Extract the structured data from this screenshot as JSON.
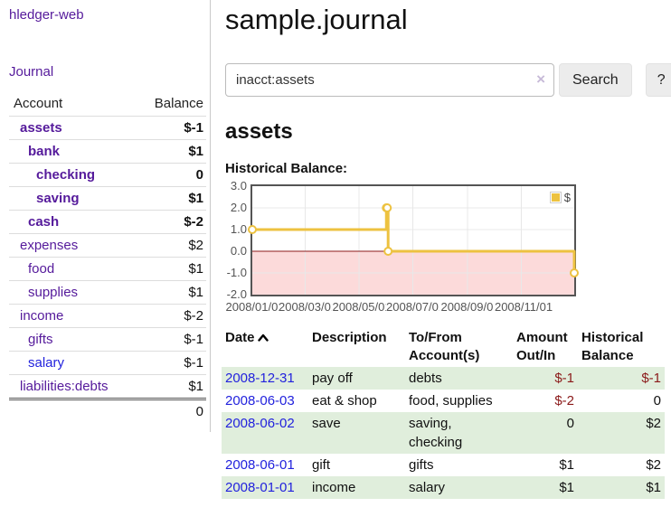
{
  "colors": {
    "link_purple": "#551a9b",
    "link_blue": "#2222dd",
    "negative_strong": "#8b1a1a",
    "negative_soft": "#b25f5f",
    "series_yellow": "#edc240",
    "negative_region_pink": "#fcdada",
    "row_green": "#e0eedc"
  },
  "sidebar": {
    "brand": "hledger-web",
    "journal_link": "Journal",
    "accounts_table": {
      "headers": {
        "account": "Account",
        "balance": "Balance"
      },
      "rows": [
        {
          "name": "assets",
          "balance": "$-1",
          "level": 1,
          "bold": true,
          "negative": true,
          "blue": false
        },
        {
          "name": "bank",
          "balance": "$1",
          "level": 2,
          "bold": true,
          "negative": false,
          "blue": false
        },
        {
          "name": "checking",
          "balance": "0",
          "level": 3,
          "bold": true,
          "negative": false,
          "blue": false
        },
        {
          "name": "saving",
          "balance": "$1",
          "level": 3,
          "bold": true,
          "negative": false,
          "blue": false
        },
        {
          "name": "cash",
          "balance": "$-2",
          "level": 2,
          "bold": true,
          "negative": true,
          "blue": false
        },
        {
          "name": "expenses",
          "balance": "$2",
          "level": 1,
          "bold": false,
          "negative": false,
          "blue": false
        },
        {
          "name": "food",
          "balance": "$1",
          "level": 2,
          "bold": false,
          "negative": false,
          "blue": false
        },
        {
          "name": "supplies",
          "balance": "$1",
          "level": 2,
          "bold": false,
          "negative": false,
          "blue": false
        },
        {
          "name": "income",
          "balance": "$-2",
          "level": 1,
          "bold": false,
          "negative": true,
          "blue": false
        },
        {
          "name": "gifts",
          "balance": "$-1",
          "level": 2,
          "bold": false,
          "negative": true,
          "blue": false
        },
        {
          "name": "salary",
          "balance": "$-1",
          "level": 2,
          "bold": false,
          "negative": true,
          "blue": true
        },
        {
          "name": "liabilities:debts",
          "balance": "$1",
          "level": 1,
          "bold": false,
          "negative": false,
          "blue": false
        }
      ],
      "total": "0"
    }
  },
  "main": {
    "title": "sample.journal",
    "search": {
      "value": "inacct:assets",
      "clear_icon": "×",
      "button": "Search",
      "help_button": "?"
    },
    "account_heading": "assets",
    "chart_heading": "Historical Balance:"
  },
  "chart_data": {
    "type": "line",
    "title": "Historical Balance:",
    "style": "steps",
    "legend_position": "top-right",
    "ylim": [
      -2,
      3
    ],
    "x_range_days": 365,
    "negative_region_shaded": true,
    "series": [
      {
        "name": "$",
        "color": "#edc240",
        "points": [
          {
            "date": "2008-01-01",
            "day": 0,
            "value": 1
          },
          {
            "date": "2008-06-01",
            "day": 152,
            "value": 2
          },
          {
            "date": "2008-06-02",
            "day": 153,
            "value": 2
          },
          {
            "date": "2008-06-03",
            "day": 154,
            "value": 0
          },
          {
            "date": "2008-12-31",
            "day": 365,
            "value": -1
          }
        ]
      }
    ],
    "x_ticks": [
      {
        "label": "2008/01/01",
        "day": 0
      },
      {
        "label": "2008/03/01",
        "day": 60
      },
      {
        "label": "2008/05/01",
        "day": 121
      },
      {
        "label": "2008/07/01",
        "day": 182
      },
      {
        "label": "2008/09/01",
        "day": 244
      },
      {
        "label": "2008/11/01",
        "day": 305
      }
    ],
    "y_ticks": [
      {
        "label": "3.0",
        "value": 3
      },
      {
        "label": "2.0",
        "value": 2
      },
      {
        "label": "1.0",
        "value": 1
      },
      {
        "label": "0.0",
        "value": 0
      },
      {
        "label": "-1.0",
        "value": -1
      },
      {
        "label": "-2.0",
        "value": -2
      }
    ]
  },
  "register_table": {
    "headers": {
      "date": "Date",
      "sort_indicator": "chevron-up",
      "description": "Description",
      "accounts_lines": [
        "To/From",
        "Account(s)"
      ],
      "amount_lines": [
        "Amount",
        "Out/In"
      ],
      "balance_lines": [
        "Historical",
        "Balance"
      ]
    },
    "rows": [
      {
        "date": "2008-12-31",
        "description": "pay off",
        "accounts_lines": [
          "debts"
        ],
        "amount": "$-1",
        "balance": "$-1",
        "amount_negative": true,
        "balance_negative": true
      },
      {
        "date": "2008-06-03",
        "description": "eat & shop",
        "accounts_lines": [
          "food, supplies"
        ],
        "amount": "$-2",
        "balance": "0",
        "amount_negative": true,
        "balance_negative": false
      },
      {
        "date": "2008-06-02",
        "description": "save",
        "accounts_lines": [
          "saving,",
          "checking"
        ],
        "amount": "0",
        "balance": "$2",
        "amount_negative": false,
        "balance_negative": false
      },
      {
        "date": "2008-06-01",
        "description": "gift",
        "accounts_lines": [
          "gifts"
        ],
        "amount": "$1",
        "balance": "$2",
        "amount_negative": false,
        "balance_negative": false
      },
      {
        "date": "2008-01-01",
        "description": "income",
        "accounts_lines": [
          "salary"
        ],
        "amount": "$1",
        "balance": "$1",
        "amount_negative": false,
        "balance_negative": false
      }
    ]
  }
}
